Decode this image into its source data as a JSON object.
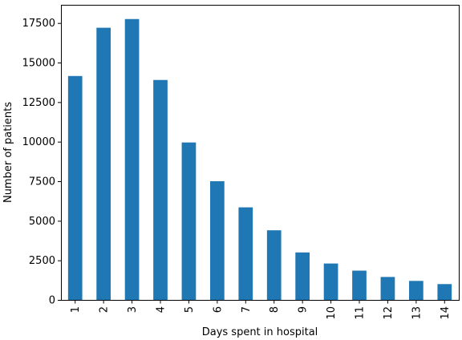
{
  "chart_data": {
    "type": "bar",
    "title": "",
    "xlabel": "Days spent in hospital",
    "ylabel": "Number of patients",
    "categories": [
      "1",
      "2",
      "3",
      "4",
      "5",
      "6",
      "7",
      "8",
      "9",
      "10",
      "11",
      "12",
      "13",
      "14"
    ],
    "values": [
      14150,
      17200,
      17750,
      13900,
      9950,
      7500,
      5850,
      4400,
      3000,
      2300,
      1850,
      1450,
      1200,
      1000
    ],
    "ylim": [
      0,
      18650
    ],
    "yticks": [
      0,
      2500,
      5000,
      7500,
      10000,
      12500,
      15000,
      17500
    ],
    "ytick_labels": [
      "0",
      "2500",
      "5000",
      "7500",
      "10000",
      "12500",
      "15000",
      "17500"
    ],
    "xtick_rotation": "vertical",
    "grid": false,
    "legend": "none",
    "bar_color": "#1f77b4"
  }
}
